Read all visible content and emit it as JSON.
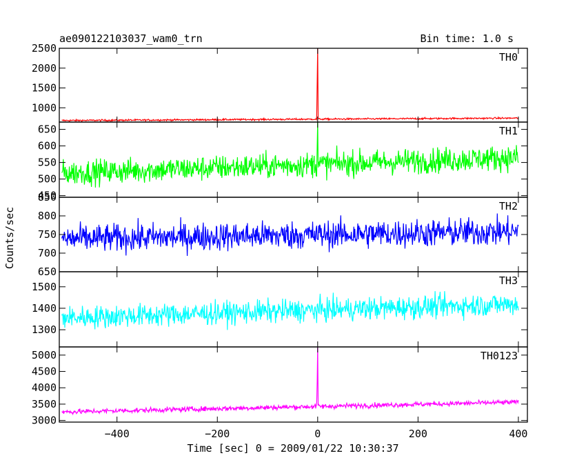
{
  "chart_data": {
    "type": "line",
    "title": "ae090122103037_wam0_trn",
    "bin_time": "Bin time: 1.0 s",
    "xlabel": "Time [sec] 0 = 2009/01/22 10:30:37",
    "ylabel": "Counts/sec",
    "xlim": [
      -515,
      418
    ],
    "x_ticks": [
      -400,
      -200,
      0,
      200,
      400
    ],
    "x_tick_labels": [
      "−400",
      "−200",
      "0",
      "200",
      "400"
    ],
    "x_start": -510,
    "x_end": 400,
    "panels": [
      {
        "name": "TH0",
        "color": "#ff0000",
        "ylim": [
          640,
          2500
        ],
        "y_ticks": [
          1000,
          1500,
          2000,
          2500
        ],
        "y_tick_labels": [
          "1000",
          "1500",
          "2000",
          "2500"
        ],
        "baseline_start": 680,
        "baseline_end": 740,
        "noise": 15,
        "spike": {
          "x": 0,
          "peak": 2500,
          "shoulder": 1650
        }
      },
      {
        "name": "TH1",
        "color": "#00ff00",
        "ylim": [
          445,
          672
        ],
        "y_ticks": [
          450,
          500,
          550,
          600,
          650
        ],
        "y_tick_labels": [
          "450",
          "500",
          "550",
          "600",
          "650"
        ],
        "baseline_start": 518,
        "baseline_end": 565,
        "noise": 27,
        "spike": {
          "x": 0,
          "peak": 672,
          "shoulder": 600
        }
      },
      {
        "name": "TH2",
        "color": "#0000ff",
        "ylim": [
          650,
          850
        ],
        "y_ticks": [
          650,
          700,
          750,
          800,
          850
        ],
        "y_tick_labels": [
          "650",
          "700",
          "750",
          "800",
          "850"
        ],
        "baseline_start": 738,
        "baseline_end": 758,
        "noise": 27,
        "spike": null
      },
      {
        "name": "TH3",
        "color": "#00ffff",
        "ylim": [
          1220,
          1570
        ],
        "y_ticks": [
          1300,
          1400,
          1500
        ],
        "y_tick_labels": [
          "1300",
          "1400",
          "1500"
        ],
        "baseline_start": 1355,
        "baseline_end": 1420,
        "noise": 38,
        "spike": null
      },
      {
        "name": "TH0123",
        "color": "#ff00ff",
        "ylim": [
          2950,
          5250
        ],
        "y_ticks": [
          3000,
          3500,
          4000,
          4500,
          5000
        ],
        "y_tick_labels": [
          "3000",
          "3500",
          "4000",
          "4500",
          "5000"
        ],
        "baseline_start": 3260,
        "baseline_end": 3560,
        "noise": 55,
        "spike": {
          "x": 0,
          "peak": 5250,
          "shoulder": 4200
        }
      }
    ]
  }
}
